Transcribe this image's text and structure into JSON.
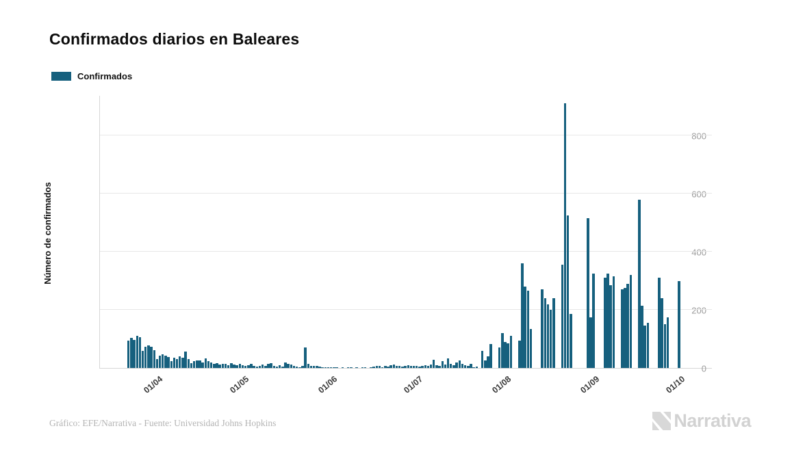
{
  "title": "Confirmados diarios en Baleares",
  "legend": {
    "label": "Confirmados",
    "color": "#16607e"
  },
  "footer": {
    "credit": "Gráfico: EFE/Narrativa - Fuente: Universidad Johns Hopkins"
  },
  "brand": {
    "name": "Narrativa",
    "mark_color": "#d8d8d8"
  },
  "chart_data": {
    "type": "bar",
    "title": "Confirmados diarios en Baleares",
    "series_name": "Confirmados",
    "xlabel": "",
    "ylabel": "Número de confirmados",
    "ylim": [
      0,
      940
    ],
    "yticks": [
      0,
      200,
      400,
      600,
      800
    ],
    "grid": "horizontal",
    "legend_position": "top-left",
    "bar_color": "#16607e",
    "x_tick_labels": [
      {
        "label": "01/04",
        "index": 10
      },
      {
        "label": "01/05",
        "index": 40
      },
      {
        "label": "01/06",
        "index": 71
      },
      {
        "label": "01/07",
        "index": 101
      },
      {
        "label": "01/08",
        "index": 132
      },
      {
        "label": "01/09",
        "index": 163
      },
      {
        "label": "01/10",
        "index": 193
      }
    ],
    "values": [
      95,
      103,
      96,
      110,
      106,
      60,
      73,
      78,
      73,
      61,
      30,
      43,
      47,
      43,
      38,
      24,
      35,
      30,
      39,
      35,
      57,
      30,
      17,
      23,
      25,
      25,
      19,
      33,
      23,
      19,
      15,
      17,
      11,
      15,
      13,
      10,
      17,
      12,
      9,
      14,
      10,
      6,
      9,
      13,
      8,
      5,
      8,
      11,
      6,
      13,
      16,
      8,
      5,
      9,
      5,
      18,
      15,
      12,
      8,
      5,
      3,
      6,
      70,
      15,
      8,
      8,
      6,
      5,
      3,
      2,
      2,
      1,
      1,
      2,
      0,
      1,
      0,
      1,
      1,
      0,
      1,
      0,
      1,
      1,
      0,
      1,
      5,
      8,
      6,
      3,
      8,
      5,
      10,
      12,
      6,
      8,
      5,
      8,
      10,
      8,
      6,
      8,
      5,
      8,
      10,
      8,
      12,
      28,
      10,
      8,
      23,
      12,
      33,
      15,
      10,
      18,
      25,
      13,
      10,
      8,
      13,
      3,
      5,
      0,
      58,
      27,
      40,
      82,
      0,
      0,
      70,
      120,
      90,
      85,
      110,
      0,
      0,
      95,
      360,
      280,
      265,
      135,
      0,
      0,
      0,
      270,
      240,
      220,
      200,
      240,
      0,
      0,
      355,
      910,
      525,
      185,
      0,
      0,
      0,
      0,
      0,
      515,
      175,
      325,
      0,
      0,
      0,
      310,
      325,
      285,
      315,
      0,
      0,
      270,
      275,
      290,
      320,
      0,
      0,
      580,
      215,
      145,
      155,
      0,
      0,
      0,
      310,
      240,
      150,
      175,
      0,
      0,
      0,
      300,
      0,
      0
    ]
  }
}
